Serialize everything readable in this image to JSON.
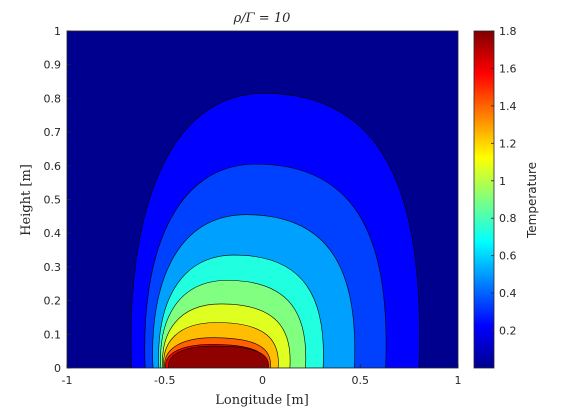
{
  "chart_data": {
    "type": "contourf",
    "title": "ρ/Γ = 10",
    "xlabel": "Longitude [m]",
    "ylabel": "Height [m]",
    "xlim": [
      -1,
      1
    ],
    "ylim": [
      0,
      1
    ],
    "xticks": [
      "-1",
      "-0.5",
      "0",
      "0.5",
      "1"
    ],
    "yticks": [
      "0",
      "0.1",
      "0.2",
      "0.3",
      "0.4",
      "0.5",
      "0.6",
      "0.7",
      "0.8",
      "0.9",
      "1"
    ],
    "colorbar": {
      "label": "Temperature",
      "range": [
        0,
        1.8
      ],
      "colormap": "jet",
      "ticks": [
        "0.2",
        "0.4",
        "0.6",
        "0.8",
        "1",
        "1.2",
        "1.4",
        "1.6",
        "1.8"
      ]
    },
    "background_color": "#00008F",
    "contour_levels": [
      {
        "level": 0.1,
        "color": "#0000FF",
        "xmin": -0.67,
        "xmax": 0.8,
        "ymax": 0.815
      },
      {
        "level": 0.3,
        "color": "#0040FF",
        "xmin": -0.6,
        "xmax": 0.63,
        "ymax": 0.605
      },
      {
        "level": 0.5,
        "color": "#00A0FF",
        "xmin": -0.56,
        "xmax": 0.47,
        "ymax": 0.455
      },
      {
        "level": 0.7,
        "color": "#20FFDF",
        "xmin": -0.53,
        "xmax": 0.31,
        "ymax": 0.335
      },
      {
        "level": 0.9,
        "color": "#80FF80",
        "xmin": -0.52,
        "xmax": 0.22,
        "ymax": 0.26
      },
      {
        "level": 1.1,
        "color": "#DFFF20",
        "xmin": -0.51,
        "xmax": 0.14,
        "ymax": 0.19
      },
      {
        "level": 1.3,
        "color": "#FFBF00",
        "xmin": -0.505,
        "xmax": 0.08,
        "ymax": 0.135
      },
      {
        "level": 1.5,
        "color": "#FF6000",
        "xmin": -0.5,
        "xmax": 0.04,
        "ymax": 0.09
      },
      {
        "level": 1.7,
        "color": "#EF0000",
        "xmin": -0.495,
        "xmax": 0.02,
        "ymax": 0.07
      }
    ],
    "peak": {
      "color": "#8F0000",
      "xmin": -0.48,
      "xmax": 0.03,
      "ymax": 0.065
    }
  }
}
